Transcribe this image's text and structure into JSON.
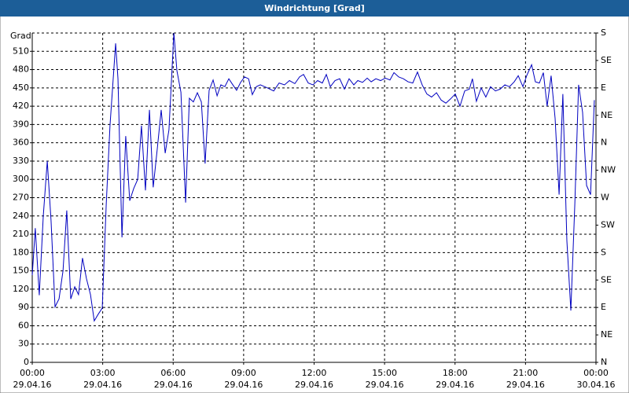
{
  "chart_data": {
    "type": "line",
    "title": "Windrichtung [Grad]",
    "y_label": "Grad",
    "xlim": [
      0,
      24
    ],
    "xticks": [
      {
        "value": 0,
        "label": "00:00"
      },
      {
        "value": 3,
        "label": "03:00"
      },
      {
        "value": 6,
        "label": "06:00"
      },
      {
        "value": 9,
        "label": "09:00"
      },
      {
        "value": 12,
        "label": "12:00"
      },
      {
        "value": 15,
        "label": "15:00"
      },
      {
        "value": 18,
        "label": "18:00"
      },
      {
        "value": 21,
        "label": "21:00"
      },
      {
        "value": 24,
        "label": "00:00"
      }
    ],
    "xtick_dates": [
      "29.04.16",
      "29.04.16",
      "29.04.16",
      "29.04.16",
      "29.04.16",
      "29.04.16",
      "29.04.16",
      "29.04.16",
      "30.04.16"
    ],
    "ylim": [
      0,
      540
    ],
    "yticks": [
      0,
      30,
      60,
      90,
      120,
      150,
      180,
      210,
      240,
      270,
      300,
      330,
      360,
      390,
      420,
      450,
      480,
      510
    ],
    "y2lim": [
      0,
      540
    ],
    "y2ticks": [
      {
        "value": 0,
        "label": "N"
      },
      {
        "value": 45,
        "label": "NE"
      },
      {
        "value": 90,
        "label": "E"
      },
      {
        "value": 135,
        "label": "SE"
      },
      {
        "value": 180,
        "label": "S"
      },
      {
        "value": 225,
        "label": "SW"
      },
      {
        "value": 270,
        "label": "W"
      },
      {
        "value": 315,
        "label": "NW"
      },
      {
        "value": 360,
        "label": "N"
      },
      {
        "value": 405,
        "label": "NE"
      },
      {
        "value": 450,
        "label": "E"
      },
      {
        "value": 495,
        "label": "SE"
      },
      {
        "value": 540,
        "label": "S"
      }
    ],
    "grid": true,
    "x": [
      0,
      0.13,
      0.3,
      0.47,
      0.64,
      0.8,
      0.97,
      1.14,
      1.31,
      1.47,
      1.64,
      1.81,
      1.97,
      2.14,
      2.31,
      2.48,
      2.64,
      2.81,
      2.98,
      3.15,
      3.31,
      3.55,
      3.65,
      3.82,
      3.98,
      4.15,
      4.32,
      4.49,
      4.65,
      4.82,
      4.99,
      5.15,
      5.32,
      5.49,
      5.66,
      5.82,
      6.03,
      6.16,
      6.33,
      6.53,
      6.69,
      6.86,
      7.03,
      7.2,
      7.36,
      7.53,
      7.7,
      7.87,
      8.03,
      8.2,
      8.37,
      8.54,
      8.7,
      8.87,
      9.04,
      9.21,
      9.37,
      9.54,
      9.71,
      10.01,
      10.28,
      10.51,
      10.74,
      10.95,
      11.18,
      11.38,
      11.55,
      11.75,
      11.95,
      12.15,
      12.35,
      12.52,
      12.69,
      12.89,
      13.09,
      13.29,
      13.49,
      13.69,
      13.86,
      14.06,
      14.26,
      14.43,
      14.63,
      14.83,
      15.03,
      15.23,
      15.4,
      15.6,
      15.8,
      16.0,
      16.2,
      16.4,
      16.6,
      16.8,
      17.0,
      17.21,
      17.41,
      17.61,
      17.81,
      18.01,
      18.21,
      18.41,
      18.61,
      18.74,
      18.91,
      19.11,
      19.31,
      19.51,
      19.72,
      19.92,
      20.12,
      20.32,
      20.52,
      20.69,
      20.89,
      21.05,
      21.26,
      21.42,
      21.59,
      21.76,
      21.92,
      22.09,
      22.26,
      22.43,
      22.59,
      22.76,
      22.93,
      23.1,
      23.26,
      23.43,
      23.6,
      23.77,
      23.93
    ],
    "series": [
      {
        "color": "#0000c0",
        "values": [
          143,
          220,
          110,
          240,
          330,
          233,
          91,
          104,
          150,
          249,
          104,
          124,
          111,
          171,
          137,
          111,
          68,
          79,
          89,
          259,
          388,
          523,
          465,
          205,
          371,
          265,
          285,
          300,
          388,
          282,
          414,
          287,
          349,
          414,
          343,
          381,
          540,
          478,
          443,
          262,
          433,
          427,
          442,
          427,
          326,
          446,
          463,
          437,
          455,
          452,
          465,
          455,
          446,
          459,
          468,
          465,
          439,
          452,
          455,
          450,
          445,
          458,
          455,
          462,
          457,
          468,
          472,
          458,
          455,
          462,
          458,
          472,
          452,
          462,
          465,
          448,
          465,
          455,
          462,
          459,
          466,
          460,
          465,
          462,
          466,
          463,
          475,
          468,
          465,
          460,
          458,
          476,
          455,
          440,
          435,
          442,
          430,
          425,
          432,
          440,
          420,
          445,
          448,
          465,
          428,
          450,
          435,
          452,
          445,
          448,
          455,
          452,
          460,
          470,
          452,
          470,
          488,
          460,
          458,
          475,
          420,
          470,
          400,
          275,
          440,
          200,
          85,
          260,
          455,
          410,
          290,
          275,
          430
        ]
      }
    ]
  }
}
